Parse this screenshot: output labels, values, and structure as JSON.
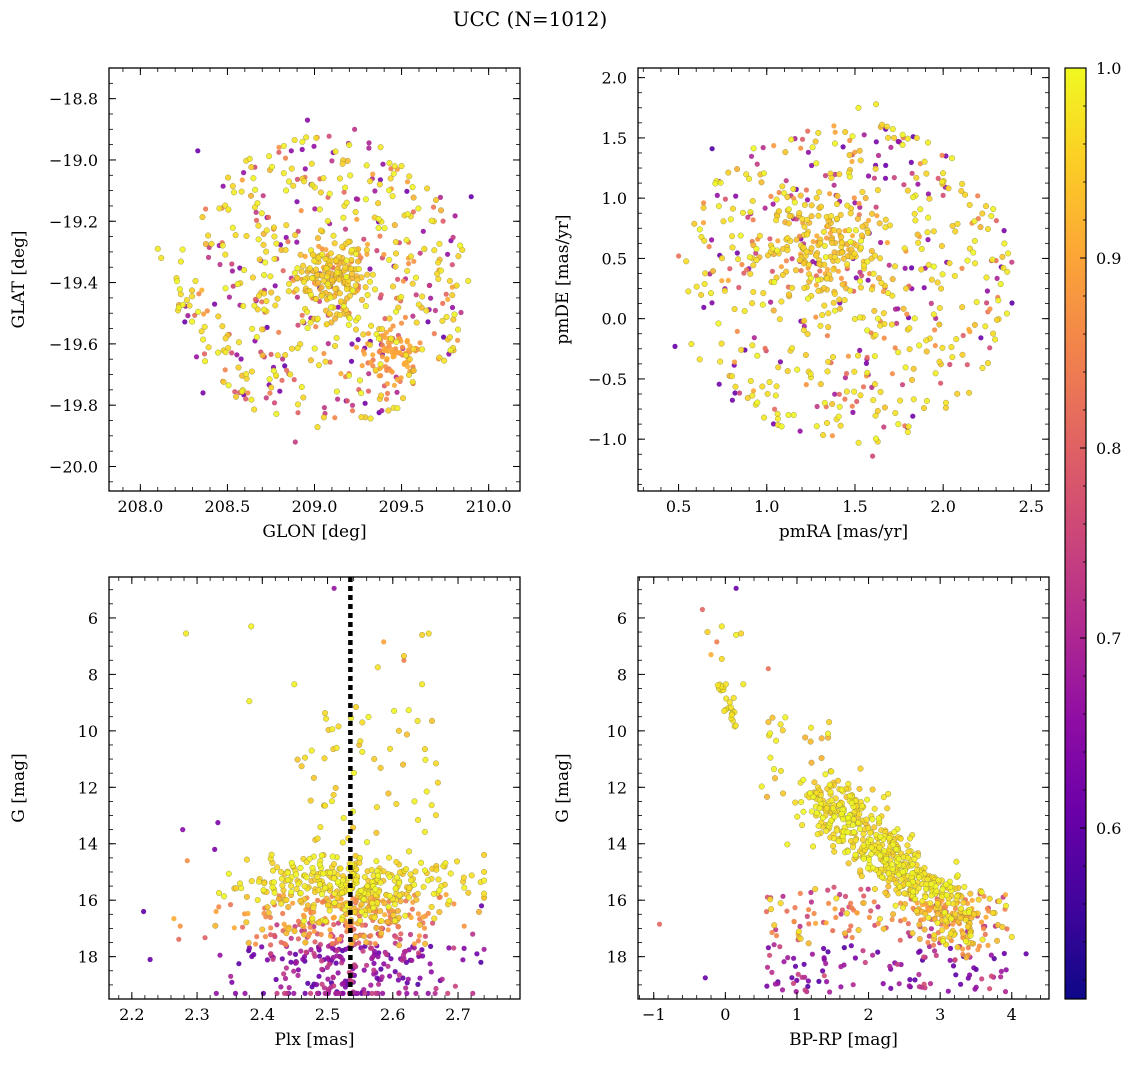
{
  "figure_title": "UCC (N=1012)",
  "colorbar": {
    "min": 0.51,
    "max": 1.0,
    "ticks": [
      "0.6",
      "0.7",
      "0.8",
      "0.9",
      "1.0"
    ],
    "colormap": "plasma"
  },
  "chart_data": [
    {
      "type": "scatter",
      "id": "sky",
      "xlabel": "GLON [deg]",
      "ylabel": "GLAT [deg]",
      "xlim": [
        207.82,
        210.18
      ],
      "ylim": [
        -20.08,
        -18.7
      ],
      "xticks": [
        "208.0",
        "208.5",
        "209.0",
        "209.5",
        "210.0"
      ],
      "yticks": [
        "−18.8",
        "−19.0",
        "−19.2",
        "−19.4",
        "−19.6",
        "−19.8",
        "−20.0"
      ],
      "xtick_values": [
        208.0,
        208.5,
        209.0,
        209.5,
        210.0
      ],
      "ytick_values": [
        -18.8,
        -19.0,
        -19.2,
        -19.4,
        -19.6,
        -19.8,
        -20.0
      ],
      "clusters": [
        {
          "center": [
            209.1,
            -19.38
          ],
          "spread": [
            0.1,
            0.06
          ],
          "n": 160,
          "prob": 0.96
        },
        {
          "center": [
            209.45,
            -19.63
          ],
          "spread": [
            0.08,
            0.05
          ],
          "n": 90,
          "prob": 0.9
        }
      ],
      "field": {
        "center": [
          209.05,
          -19.4
        ],
        "radius": [
          0.85,
          0.48
        ],
        "n": 560
      },
      "points": [
        [
          208.89,
          -19.92,
          0.7
        ],
        [
          209.23,
          -18.9,
          0.68
        ],
        [
          208.96,
          -18.87,
          0.6
        ],
        [
          209.9,
          -19.12,
          0.55
        ],
        [
          208.1,
          -19.29,
          0.98
        ],
        [
          208.12,
          -19.32,
          0.97
        ],
        [
          208.33,
          -18.97,
          0.56
        ],
        [
          208.36,
          -19.76,
          0.58
        ]
      ]
    },
    {
      "type": "scatter",
      "id": "pm",
      "xlabel": "pmRA [mas/yr]",
      "ylabel": "pmDE [mas/yr]",
      "xlim": [
        0.27,
        2.6
      ],
      "ylim": [
        -1.43,
        2.08
      ],
      "xticks": [
        "0.5",
        "1.0",
        "1.5",
        "2.0",
        "2.5"
      ],
      "yticks": [
        "2.0",
        "1.5",
        "1.0",
        "0.5",
        "0.0",
        "−0.5",
        "−1.0"
      ],
      "xtick_values": [
        0.5,
        1.0,
        1.5,
        2.0,
        2.5
      ],
      "ytick_values": [
        2.0,
        1.5,
        1.0,
        0.5,
        0.0,
        -0.5,
        -1.0
      ],
      "clusters": [
        {
          "center": [
            1.32,
            0.58
          ],
          "spread": [
            0.17,
            0.25
          ],
          "n": 170,
          "prob": 0.96
        }
      ],
      "field": {
        "center": [
          1.45,
          0.3
        ],
        "radius": [
          0.95,
          1.35
        ],
        "n": 560
      },
      "points": [
        [
          1.62,
          1.78,
          0.98
        ],
        [
          1.52,
          1.75,
          0.99
        ],
        [
          0.69,
          1.41,
          0.52
        ],
        [
          0.48,
          -0.23,
          0.55
        ],
        [
          2.39,
          0.13,
          0.54
        ],
        [
          1.6,
          -1.14,
          0.72
        ],
        [
          1.83,
          1.51,
          0.55
        ],
        [
          0.5,
          0.52,
          0.8
        ]
      ]
    },
    {
      "type": "scatter",
      "id": "plx",
      "xlabel": "Plx [mas]",
      "ylabel": "G [mag]",
      "xlim": [
        2.165,
        2.795
      ],
      "ylim": [
        19.5,
        4.55
      ],
      "xticks": [
        "2.2",
        "2.3",
        "2.4",
        "2.5",
        "2.6",
        "2.7"
      ],
      "yticks": [
        "6",
        "8",
        "10",
        "12",
        "14",
        "16",
        "18"
      ],
      "xtick_values": [
        2.2,
        2.3,
        2.4,
        2.5,
        2.6,
        2.7
      ],
      "ytick_values": [
        6,
        8,
        10,
        12,
        14,
        16,
        18
      ],
      "vline": 2.535,
      "points": [
        [
          2.283,
          6.55,
          0.98
        ],
        [
          2.383,
          6.3,
          0.99
        ],
        [
          2.38,
          8.95,
          0.99
        ],
        [
          2.449,
          8.35,
          0.99
        ],
        [
          2.51,
          4.95,
          0.62
        ],
        [
          2.586,
          6.85,
          0.88
        ],
        [
          2.645,
          6.6,
          0.95
        ],
        [
          2.655,
          6.55,
          0.96
        ],
        [
          2.617,
          7.35,
          0.95
        ],
        [
          2.617,
          7.5,
          0.82
        ],
        [
          2.577,
          7.75,
          0.97
        ],
        [
          2.645,
          8.35,
          0.98
        ],
        [
          2.218,
          16.4,
          0.54
        ],
        [
          2.228,
          18.1,
          0.55
        ],
        [
          2.278,
          13.5,
          0.6
        ],
        [
          2.285,
          14.6,
          0.85
        ],
        [
          2.332,
          13.25,
          0.58
        ],
        [
          2.327,
          14.2,
          0.58
        ],
        [
          2.736,
          16.2,
          0.55
        ],
        [
          2.729,
          17.9,
          0.56
        ],
        [
          2.735,
          18.2,
          0.52
        ]
      ]
    },
    {
      "type": "scatter",
      "id": "cmd",
      "xlabel": "BP-RP [mag]",
      "ylabel": "G [mag]",
      "xlim": [
        -1.22,
        4.52
      ],
      "ylim": [
        19.5,
        4.55
      ],
      "xticks": [
        "−1",
        "0",
        "1",
        "2",
        "3",
        "4"
      ],
      "xtick_values": [
        -1,
        0,
        1,
        2,
        3,
        4
      ],
      "yticks": [
        "6",
        "8",
        "10",
        "12",
        "14",
        "16",
        "18"
      ],
      "ytick_values": [
        6,
        8,
        10,
        12,
        14,
        16,
        18
      ],
      "points": [
        [
          0.15,
          4.95,
          0.55
        ],
        [
          -0.32,
          5.7,
          0.78
        ],
        [
          -0.25,
          6.5,
          0.95
        ],
        [
          -0.12,
          6.85,
          0.82
        ],
        [
          -0.05,
          6.3,
          0.98
        ],
        [
          0.15,
          6.6,
          0.99
        ],
        [
          0.22,
          6.55,
          0.95
        ],
        [
          -0.2,
          7.3,
          0.9
        ],
        [
          -0.05,
          7.45,
          0.96
        ],
        [
          0.6,
          7.8,
          0.8
        ],
        [
          0.25,
          8.35,
          0.98
        ],
        [
          -0.92,
          16.85,
          0.78
        ],
        [
          -0.28,
          18.75,
          0.55
        ],
        [
          3.92,
          16.2,
          0.99
        ],
        [
          4.2,
          17.9,
          0.55
        ],
        [
          4.0,
          17.3,
          0.97
        ]
      ]
    }
  ]
}
